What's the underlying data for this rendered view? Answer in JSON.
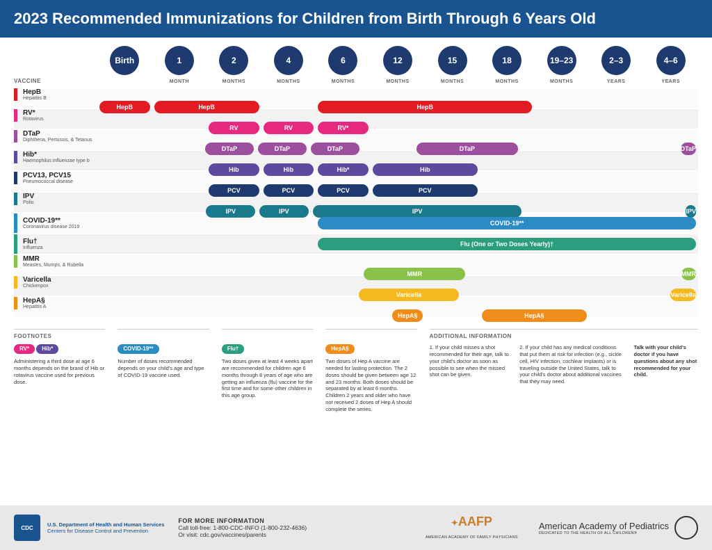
{
  "title": "2023 Recommended Immunizations for Children from Birth Through 6 Years Old",
  "vaccine_label": "VACCINE",
  "ages": [
    {
      "n": "Birth",
      "unit": ""
    },
    {
      "n": "1",
      "unit": "MONTH"
    },
    {
      "n": "2",
      "unit": "MONTHS"
    },
    {
      "n": "4",
      "unit": "MONTHS"
    },
    {
      "n": "6",
      "unit": "MONTHS"
    },
    {
      "n": "12",
      "unit": "MONTHS"
    },
    {
      "n": "15",
      "unit": "MONTHS"
    },
    {
      "n": "18",
      "unit": "MONTHS"
    },
    {
      "n": "19–23",
      "unit": "MONTHS"
    },
    {
      "n": "2–3",
      "unit": "YEARS"
    },
    {
      "n": "4–6",
      "unit": "YEARS"
    }
  ],
  "colors": {
    "hepb": "#e31b23",
    "rv": "#e6297f",
    "dtap": "#9b4f9e",
    "hib": "#5d4a9e",
    "pcv": "#1e3a6e",
    "ipv": "#1a7a8c",
    "covid": "#2b8cc4",
    "flu": "#2b9e7f",
    "mmr": "#8bc34a",
    "varicella": "#f5b91f",
    "hepa": "#f08c1a"
  },
  "rows": [
    {
      "name": "HepB",
      "sub": "Hepatitis B",
      "color": "hepb",
      "doses": [
        {
          "start": 1,
          "span": 1,
          "label": "HepB"
        },
        {
          "start": 2,
          "span": 2,
          "label": "HepB"
        },
        {
          "start": 5,
          "span": 4,
          "label": "HepB"
        }
      ]
    },
    {
      "name": "RV*",
      "sub": "Rotavirus",
      "color": "rv",
      "doses": [
        {
          "start": 3,
          "span": 1,
          "label": "RV"
        },
        {
          "start": 4,
          "span": 1,
          "label": "RV"
        },
        {
          "start": 5,
          "span": 1,
          "label": "RV*"
        }
      ]
    },
    {
      "name": "DTaP",
      "sub": "Diphtheria, Pertussis, & Tetanus",
      "color": "dtap",
      "doses": [
        {
          "start": 3,
          "span": 1,
          "label": "DTaP"
        },
        {
          "start": 4,
          "span": 1,
          "label": "DTaP"
        },
        {
          "start": 5,
          "span": 1,
          "label": "DTaP"
        },
        {
          "start": 7,
          "span": 2,
          "label": "DTaP"
        },
        {
          "start": 12,
          "span": 1,
          "label": "DTaP"
        }
      ]
    },
    {
      "name": "Hib*",
      "sub": "Haemophilus influenzae type b",
      "color": "hib",
      "doses": [
        {
          "start": 3,
          "span": 1,
          "label": "Hib"
        },
        {
          "start": 4,
          "span": 1,
          "label": "Hib"
        },
        {
          "start": 5,
          "span": 1,
          "label": "Hib*"
        },
        {
          "start": 6,
          "span": 2,
          "label": "Hib"
        }
      ]
    },
    {
      "name": "PCV13, PCV15",
      "sub": "Pneumococcal disease",
      "color": "pcv",
      "doses": [
        {
          "start": 3,
          "span": 1,
          "label": "PCV"
        },
        {
          "start": 4,
          "span": 1,
          "label": "PCV"
        },
        {
          "start": 5,
          "span": 1,
          "label": "PCV"
        },
        {
          "start": 6,
          "span": 2,
          "label": "PCV"
        }
      ]
    },
    {
      "name": "IPV",
      "sub": "Polio",
      "color": "ipv",
      "doses": [
        {
          "start": 3,
          "span": 1,
          "label": "IPV"
        },
        {
          "start": 4,
          "span": 1,
          "label": "IPV"
        },
        {
          "start": 5,
          "span": 4,
          "label": "IPV"
        },
        {
          "start": 12,
          "span": 1,
          "label": "IPV"
        }
      ]
    },
    {
      "name": "COVID-19**",
      "sub": "Coronavirus disease 2019",
      "color": "covid",
      "doses": [
        {
          "start": 5,
          "span": 8,
          "label": "COVID-19**"
        }
      ]
    },
    {
      "name": "Flu†",
      "sub": "Influenza",
      "color": "flu",
      "doses": [
        {
          "start": 5,
          "span": 8,
          "label": "Flu (One or Two Doses Yearly)†"
        }
      ]
    },
    {
      "name": "MMR",
      "sub": "Measles, Mumps, & Rubella",
      "color": "mmr",
      "doses": [
        {
          "start": 6,
          "span": 2,
          "label": "MMR"
        },
        {
          "start": 12,
          "span": 1,
          "label": "MMR"
        }
      ]
    },
    {
      "name": "Varicella",
      "sub": "Chickenpox",
      "color": "varicella",
      "doses": [
        {
          "start": 6,
          "span": 2,
          "label": "Varicella"
        },
        {
          "start": 12,
          "span": 1,
          "label": "Varicella"
        }
      ]
    },
    {
      "name": "HepA§",
      "sub": "Hepatitis A",
      "color": "hepa",
      "doses": [
        {
          "start": 6,
          "span": 1,
          "label": "HepA§",
          "offset": true
        },
        {
          "start": 8,
          "span": 2,
          "label": "HepA§"
        }
      ]
    }
  ],
  "footnotes_title": "FOOTNOTES",
  "footnotes": [
    {
      "pills": [
        {
          "label": "RV*",
          "color": "rv"
        },
        {
          "label": "Hib*",
          "color": "hib"
        }
      ],
      "text": "Administering a third dose at age 6 months depends on the brand of Hib or rotavirus vaccine used for previous dose."
    },
    {
      "pills": [
        {
          "label": "COVID-19**",
          "color": "covid"
        }
      ],
      "text": "Number of doses recommended depends on your child's age and type of COVID-19 vaccine used."
    },
    {
      "pills": [
        {
          "label": "Flu†",
          "color": "flu"
        }
      ],
      "text": "Two doses given at least 4 weeks apart are recommended for children age 6 months through 8 years of age who are getting an influenza (flu) vaccine for the first time and for some other children in this age group."
    },
    {
      "pills": [
        {
          "label": "HepA§",
          "color": "hepa"
        }
      ],
      "text": "Two doses of Hep A vaccine are needed for lasting protection. The 2 doses should be given between age 12 and 23 months. Both doses should be separated by at least 6 months. Children 2 years and older who have not received 2 doses of Hep A should complete the series."
    }
  ],
  "additional_title": "ADDITIONAL INFORMATION",
  "additional": [
    "1. If your child misses a shot recommended for their age, talk to your child's doctor as soon as possible to see when the missed shot can be given.",
    "2. If your child has any medical conditions that put them at risk for infection (e.g., sickle cell, HIV infection, cochlear implants) or is traveling outside the United States, talk to your child's doctor about additional vaccines that they may need.",
    "Talk with your child's doctor if you have questions about any shot recommended for your child."
  ],
  "footer": {
    "cdc_dept": "U.S. Department of Health and Human Services",
    "cdc_sub": "Centers for Disease Control and Prevention",
    "more_title": "FOR MORE INFORMATION",
    "more_phone": "Call toll-free: 1-800-CDC-INFO (1-800-232-4636)",
    "more_url": "Or visit: cdc.gov/vaccines/parents",
    "aafp": "AAFP",
    "aafp_sub": "AMERICAN ACADEMY OF FAMILY PHYSICIANS",
    "aap": "American Academy of Pediatrics",
    "aap_sub": "DEDICATED TO THE HEALTH OF ALL CHILDREN®"
  }
}
